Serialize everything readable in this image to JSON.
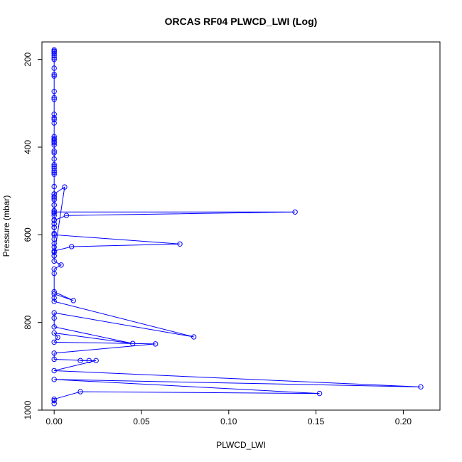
{
  "chart_data": {
    "type": "line",
    "title": "ORCAS RF04 PLWCD_LWI (Log)",
    "xlabel": "PLWCD_LWI",
    "ylabel": "Pressure (mbar)",
    "xlim": [
      -0.007,
      0.221
    ],
    "ylim": [
      1000,
      160
    ],
    "y_inverted": true,
    "grid": false,
    "legend": "none",
    "xticks": [
      0,
      0.05,
      0.1,
      0.15,
      0.2
    ],
    "xtick_labels": [
      "0.00",
      "0.05",
      "0.10",
      "0.15",
      "0.20"
    ],
    "yticks": [
      200,
      400,
      600,
      800,
      1000
    ],
    "ytick_labels": [
      "200",
      "400",
      "600",
      "800",
      "1000"
    ],
    "series": [
      {
        "color": "#0000ff",
        "marker": "open-circle",
        "x": [
          0,
          0,
          0,
          0,
          0,
          0,
          0,
          0,
          0,
          0,
          0,
          0,
          0,
          0,
          0,
          0,
          0,
          0,
          0,
          0,
          0,
          0,
          0,
          0,
          0,
          0,
          0,
          0,
          0,
          0,
          0,
          0,
          0,
          0,
          0,
          0,
          0,
          0,
          0,
          0,
          0,
          0,
          0,
          0,
          0,
          0,
          0,
          0,
          0,
          0.006,
          0,
          0,
          0,
          0,
          0.138,
          0.007,
          0,
          0,
          0,
          0,
          0.072,
          0.01,
          0,
          0,
          0,
          0.004,
          0,
          0,
          0,
          0.011,
          0,
          0,
          0,
          0.08,
          0,
          0,
          0,
          0.045,
          0,
          0.002,
          0,
          0.058,
          0,
          0,
          0.02,
          0.015,
          0.024,
          0,
          0.21,
          0,
          0.152,
          0.015,
          0,
          0,
          0
        ],
        "y": [
          178,
          181,
          183,
          187,
          191,
          196,
          200,
          220,
          234,
          238,
          273,
          287,
          291,
          325,
          333,
          337,
          345,
          376,
          380,
          383,
          387,
          390,
          395,
          409,
          413,
          427,
          440,
          444,
          448,
          454,
          458,
          462,
          490,
          507,
          513,
          520,
          532,
          545,
          551,
          556,
          566,
          575,
          583,
          597,
          610,
          620,
          628,
          640,
          648,
          491,
          507,
          516,
          532,
          548,
          548,
          556,
          567,
          575,
          583,
          600,
          621,
          627,
          637,
          648,
          660,
          669,
          678,
          688,
          730,
          750,
          735,
          744,
          752,
          833,
          778,
          790,
          810,
          848,
          824,
          834,
          845,
          849,
          870,
          884,
          887,
          887,
          887,
          910,
          947,
          930,
          962,
          958,
          975,
          978,
          985
        ]
      }
    ]
  }
}
